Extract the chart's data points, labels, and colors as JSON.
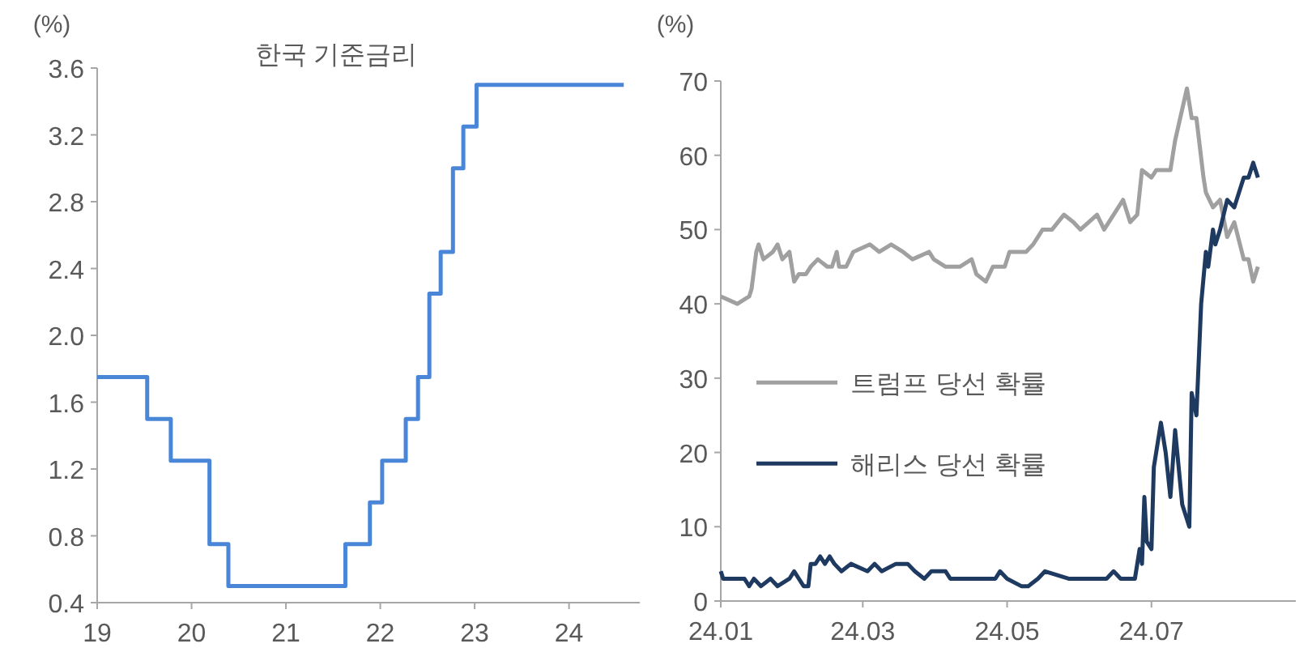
{
  "chart_data": [
    {
      "type": "step",
      "title": "한국 기준금리",
      "ylabel": "(%)",
      "xlim": [
        19,
        24.75
      ],
      "xticks": [
        19,
        20,
        21,
        22,
        23,
        24
      ],
      "ylim": [
        0.4,
        3.6
      ],
      "yticks": [
        {
          "value": 0.4,
          "label": "0.4"
        },
        {
          "value": 0.8,
          "label": "0.8"
        },
        {
          "value": 1.2,
          "label": "1.2"
        },
        {
          "value": 1.6,
          "label": "1.6"
        },
        {
          "value": 2.0,
          "label": "2.0"
        },
        {
          "value": 2.4,
          "label": "2.4"
        },
        {
          "value": 2.8,
          "label": "2.8"
        },
        {
          "value": 3.2,
          "label": "3.2"
        },
        {
          "value": 3.6,
          "label": "3.6"
        }
      ],
      "series": [
        {
          "color": "#4a86d8",
          "x": [
            19,
            19.53,
            19.78,
            20.19,
            20.39,
            21.63,
            21.89,
            22.02,
            22.27,
            22.4,
            22.52,
            22.64,
            22.77,
            22.88,
            23.02,
            24.58
          ],
          "values": [
            1.75,
            1.5,
            1.25,
            0.75,
            0.5,
            0.75,
            1.0,
            1.25,
            1.5,
            1.75,
            2.25,
            2.5,
            3.0,
            3.25,
            3.5,
            3.5
          ]
        }
      ]
    },
    {
      "type": "line",
      "ylabel": "(%)",
      "legend": "left",
      "xlim": [
        "--01-01",
        "--08-31"
      ],
      "xticks": [
        {
          "value": "--01-01",
          "label": "24.01"
        },
        {
          "value": "--03-01",
          "label": "24.03"
        },
        {
          "value": "--05-01",
          "label": "24.05"
        },
        {
          "value": "--07-01",
          "label": "24.07"
        }
      ],
      "ylim": [
        0,
        70
      ],
      "yticks": [
        0,
        10,
        20,
        30,
        40,
        50,
        60,
        70
      ],
      "series": [
        {
          "name": "트럼프 당선 확률",
          "color": "#a0a0a0",
          "x": [
            "--01-01",
            "--01-08",
            "--01-13",
            "--01-14",
            "--01-16",
            "--01-17",
            "--01-19",
            "--01-23",
            "--01-25",
            "--01-27",
            "--01-30",
            "--02-01",
            "--02-03",
            "--02-06",
            "--02-08",
            "--02-11",
            "--02-15",
            "--02-17",
            "--02-19",
            "--02-20",
            "--02-23",
            "--02-26",
            "--03-04",
            "--03-08",
            "--03-13",
            "--03-18",
            "--03-22",
            "--03-29",
            "--03-31",
            "--04-05",
            "--04-11",
            "--04-16",
            "--04-18",
            "--04-22",
            "--04-25",
            "--04-30",
            "--05-02",
            "--05-09",
            "--05-12",
            "--05-14",
            "--05-16",
            "--05-20",
            "--05-25",
            "--05-29",
            "--06-01",
            "--06-08",
            "--06-11",
            "--06-15",
            "--06-19",
            "--06-22",
            "--06-25",
            "--06-27",
            "--07-01",
            "--07-03",
            "--07-09",
            "--07-11",
            "--07-16",
            "--07-18",
            "--07-20",
            "--07-23",
            "--07-24",
            "--07-27",
            "--07-30",
            "--08-02",
            "--08-05",
            "--08-09",
            "--08-11",
            "--08-13",
            "--08-15"
          ],
          "values": [
            41,
            40,
            41,
            42,
            47,
            48,
            46,
            47,
            48,
            46,
            47,
            43,
            44,
            44,
            45,
            46,
            45,
            45,
            47,
            45,
            45,
            47,
            48,
            47,
            48,
            47,
            46,
            47,
            46,
            45,
            45,
            46,
            44,
            43,
            45,
            45,
            47,
            47,
            48,
            49,
            50,
            50,
            52,
            51,
            50,
            52,
            50,
            52,
            54,
            51,
            52,
            58,
            57,
            58,
            58,
            62,
            69,
            65,
            65,
            57,
            55,
            53,
            54,
            49,
            51,
            46,
            46,
            43,
            45
          ]
        },
        {
          "name": "해리스 당선 확률",
          "color": "#1f3a60",
          "x": [
            "--01-01",
            "--01-02",
            "--01-11",
            "--01-13",
            "--01-15",
            "--01-18",
            "--01-22",
            "--01-25",
            "--01-30",
            "--02-01",
            "--02-03",
            "--02-05",
            "--02-07",
            "--02-08",
            "--02-10",
            "--02-12",
            "--02-14",
            "--02-16",
            "--02-18",
            "--02-21",
            "--02-25",
            "--03-03",
            "--03-06",
            "--03-09",
            "--03-15",
            "--03-20",
            "--03-23",
            "--03-27",
            "--03-30",
            "--04-05",
            "--04-07",
            "--04-26",
            "--04-28",
            "--05-01",
            "--05-07",
            "--05-10",
            "--05-14",
            "--05-17",
            "--05-27",
            "--06-12",
            "--06-15",
            "--06-18",
            "--06-24",
            "--06-26",
            "--06-27",
            "--06-28",
            "--06-29",
            "--07-01",
            "--07-02",
            "--07-05",
            "--07-07",
            "--07-09",
            "--07-11",
            "--07-14",
            "--07-17",
            "--07-18",
            "--07-20",
            "--07-22",
            "--07-24",
            "--07-25",
            "--07-27",
            "--07-28",
            "--07-30",
            "--08-02",
            "--08-05",
            "--08-09",
            "--08-11",
            "--08-13",
            "--08-15"
          ],
          "values": [
            4,
            3,
            3,
            2,
            3,
            2,
            3,
            2,
            3,
            4,
            3,
            2,
            2,
            5,
            5,
            6,
            5,
            6,
            5,
            4,
            5,
            4,
            5,
            4,
            5,
            5,
            4,
            3,
            4,
            4,
            3,
            3,
            4,
            3,
            2,
            2,
            3,
            4,
            3,
            3,
            4,
            3,
            3,
            7,
            5,
            14,
            8,
            7,
            18,
            24,
            20,
            14,
            23,
            13,
            10,
            28,
            25,
            40,
            47,
            45,
            50,
            48,
            50,
            54,
            53,
            57,
            57,
            59,
            57
          ]
        }
      ]
    }
  ]
}
